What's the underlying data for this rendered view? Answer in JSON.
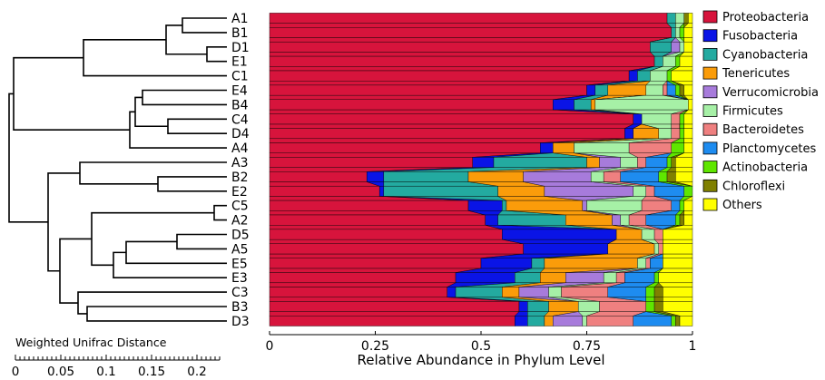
{
  "chart_data": {
    "type": "bar",
    "orientation": "horizontal",
    "stacked": true,
    "xlabel": "Relative Abundance in Phylum Level",
    "xlim": [
      0,
      1
    ],
    "xticks": [
      "0",
      "0.25",
      "0.5",
      "0.75",
      "1"
    ],
    "samples": [
      "A1",
      "B1",
      "D1",
      "E1",
      "C1",
      "E4",
      "B4",
      "C4",
      "D4",
      "A4",
      "A3",
      "B2",
      "E2",
      "C5",
      "A2",
      "D5",
      "A5",
      "E5",
      "E3",
      "C3",
      "B3",
      "D3"
    ],
    "series": [
      {
        "name": "Proteobacteria",
        "color": "#d7143c",
        "values": [
          0.94,
          0.95,
          0.9,
          0.91,
          0.85,
          0.75,
          0.67,
          0.86,
          0.84,
          0.64,
          0.48,
          0.23,
          0.26,
          0.47,
          0.51,
          0.55,
          0.6,
          0.5,
          0.44,
          0.42,
          0.59,
          0.58
        ]
      },
      {
        "name": "Fusobacteria",
        "color": "#0a14e6",
        "values": [
          0.0,
          0.0,
          0.0,
          0.0,
          0.02,
          0.02,
          0.05,
          0.02,
          0.02,
          0.03,
          0.05,
          0.04,
          0.01,
          0.08,
          0.03,
          0.27,
          0.2,
          0.12,
          0.14,
          0.02,
          0.02,
          0.03
        ]
      },
      {
        "name": "Cyanobacteria",
        "color": "#23aaa0",
        "values": [
          0.02,
          0.01,
          0.05,
          0.02,
          0.03,
          0.03,
          0.04,
          0.0,
          0.0,
          0.0,
          0.22,
          0.2,
          0.27,
          0.01,
          0.16,
          0.0,
          0.0,
          0.03,
          0.06,
          0.11,
          0.05,
          0.04
        ]
      },
      {
        "name": "Tenericutes",
        "color": "#fa9c0a",
        "values": [
          0.0,
          0.0,
          0.0,
          0.0,
          0.0,
          0.09,
          0.01,
          0.0,
          0.06,
          0.05,
          0.03,
          0.13,
          0.11,
          0.18,
          0.11,
          0.06,
          0.11,
          0.22,
          0.06,
          0.04,
          0.07,
          0.02
        ]
      },
      {
        "name": "Verrucomicrobia",
        "color": "#a77bdb",
        "values": [
          0.0,
          0.0,
          0.02,
          0.0,
          0.0,
          0.0,
          0.0,
          0.0,
          0.0,
          0.0,
          0.05,
          0.16,
          0.21,
          0.01,
          0.02,
          0.0,
          0.0,
          0.0,
          0.09,
          0.07,
          0.0,
          0.07
        ]
      },
      {
        "name": "Firmicutes",
        "color": "#a6f0a6",
        "values": [
          0.02,
          0.01,
          0.01,
          0.03,
          0.04,
          0.04,
          0.22,
          0.07,
          0.03,
          0.13,
          0.04,
          0.03,
          0.03,
          0.13,
          0.02,
          0.03,
          0.01,
          0.02,
          0.03,
          0.03,
          0.05,
          0.01
        ]
      },
      {
        "name": "Bacteroidetes",
        "color": "#ef8080",
        "values": [
          0.0,
          0.0,
          0.0,
          0.0,
          0.0,
          0.01,
          0.0,
          0.02,
          0.02,
          0.1,
          0.02,
          0.04,
          0.02,
          0.07,
          0.04,
          0.02,
          0.01,
          0.01,
          0.02,
          0.11,
          0.11,
          0.11
        ]
      },
      {
        "name": "Planctomycetes",
        "color": "#1e8cf0",
        "values": [
          0.0,
          0.0,
          0.0,
          0.0,
          0.0,
          0.02,
          0.0,
          0.0,
          0.0,
          0.0,
          0.05,
          0.09,
          0.07,
          0.02,
          0.07,
          0.0,
          0.0,
          0.03,
          0.07,
          0.09,
          0.0,
          0.09
        ]
      },
      {
        "name": "Actinobacteria",
        "color": "#5fe600",
        "values": [
          0.0,
          0.01,
          0.0,
          0.01,
          0.01,
          0.01,
          0.0,
          0.01,
          0.01,
          0.03,
          0.01,
          0.02,
          0.02,
          0.01,
          0.01,
          0.0,
          0.0,
          0.0,
          0.01,
          0.02,
          0.02,
          0.01
        ]
      },
      {
        "name": "Chloroflexi",
        "color": "#808000",
        "values": [
          0.01,
          0.0,
          0.0,
          0.0,
          0.0,
          0.01,
          0.0,
          0.0,
          0.0,
          0.0,
          0.01,
          0.02,
          0.0,
          0.0,
          0.01,
          0.0,
          0.0,
          0.0,
          0.0,
          0.02,
          0.02,
          0.01
        ]
      },
      {
        "name": "Others",
        "color": "#ffff00",
        "values": [
          0.01,
          0.02,
          0.02,
          0.03,
          0.05,
          0.02,
          0.01,
          0.02,
          0.02,
          0.02,
          0.04,
          0.04,
          0.0,
          0.02,
          0.02,
          0.07,
          0.07,
          0.07,
          0.08,
          0.07,
          0.07,
          0.03
        ]
      }
    ],
    "legend_position": "right",
    "dendrogram": {
      "title": "Weighted Unifrac Distance",
      "ticks": [
        "0",
        "0.05",
        "0.1",
        "0.15",
        "0.2"
      ]
    }
  }
}
